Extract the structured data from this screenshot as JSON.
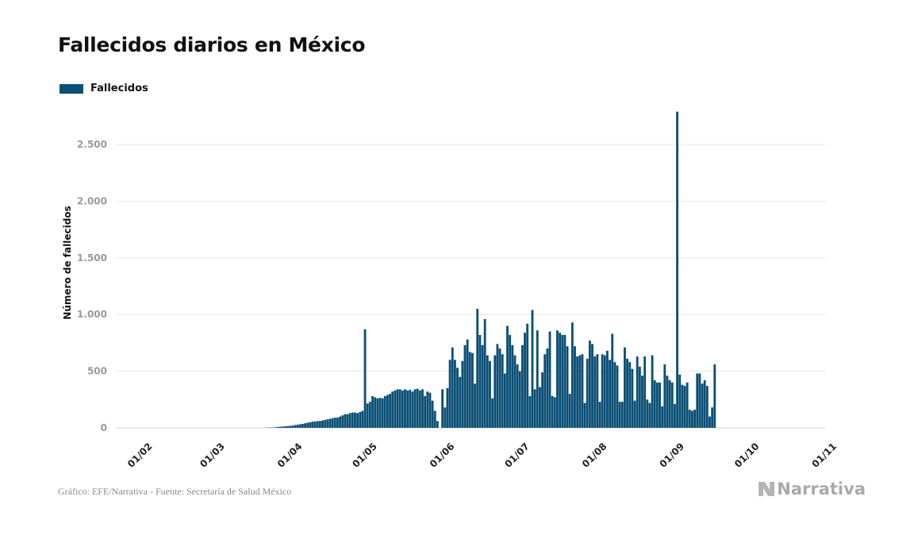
{
  "title": "Fallecidos diarios en México",
  "footer": "Gráfico: EFE/Narrativa - Fuente: Secretaría de Salud México",
  "brand": "Narrativa",
  "brand_icon": "narrativa-logo-icon",
  "colors": {
    "bar": "#0b4f75",
    "grid": "#e6e6e6",
    "tick_text": "#9a9a9a",
    "title": "#111111"
  },
  "chart_data": {
    "type": "bar",
    "title": "Fallecidos diarios en México",
    "xlabel": "",
    "ylabel": "Número de fallecidos",
    "ylim": [
      0,
      2900
    ],
    "yticks": [
      0,
      500,
      1000,
      1500,
      2000,
      2500
    ],
    "ytick_labels": [
      "0",
      "500",
      "1.000",
      "1.500",
      "2.000",
      "2.500"
    ],
    "xlim": [
      "2020-01-22",
      "2020-10-31"
    ],
    "xticks": [
      "2020-02-01",
      "2020-03-01",
      "2020-04-01",
      "2020-05-01",
      "2020-06-01",
      "2020-07-01",
      "2020-08-01",
      "2020-09-01",
      "2020-10-01",
      "2020-11-01"
    ],
    "xtick_labels": [
      "01/02",
      "01/03",
      "01/04",
      "01/05",
      "01/06",
      "01/07",
      "01/08",
      "01/09",
      "01/10",
      "01/11"
    ],
    "grid": true,
    "legend": "top-left",
    "series": [
      {
        "name": "Fallecidos",
        "start_date": "2020-01-22",
        "values": [
          0,
          0,
          0,
          0,
          0,
          0,
          0,
          0,
          0,
          0,
          0,
          0,
          0,
          0,
          0,
          0,
          0,
          0,
          0,
          0,
          0,
          0,
          0,
          0,
          0,
          0,
          0,
          0,
          0,
          0,
          0,
          0,
          0,
          0,
          0,
          0,
          0,
          0,
          0,
          0,
          0,
          0,
          0,
          0,
          0,
          0,
          0,
          0,
          0,
          0,
          0,
          0,
          0,
          0,
          0,
          0,
          0,
          0,
          0,
          1,
          2,
          2,
          3,
          5,
          8,
          10,
          12,
          14,
          15,
          18,
          20,
          25,
          28,
          32,
          35,
          40,
          45,
          50,
          55,
          55,
          60,
          60,
          65,
          70,
          75,
          80,
          85,
          90,
          90,
          100,
          110,
          120,
          120,
          130,
          135,
          135,
          130,
          140,
          150,
          870,
          215,
          230,
          280,
          270,
          260,
          265,
          260,
          280,
          290,
          300,
          320,
          330,
          340,
          340,
          330,
          340,
          330,
          335,
          320,
          340,
          345,
          330,
          340,
          280,
          320,
          310,
          240,
          150,
          60,
          0,
          340,
          180,
          350,
          600,
          710,
          600,
          530,
          450,
          590,
          730,
          780,
          670,
          660,
          390,
          1050,
          820,
          730,
          960,
          640,
          590,
          260,
          640,
          740,
          700,
          650,
          480,
          900,
          820,
          730,
          640,
          560,
          500,
          730,
          840,
          920,
          280,
          1040,
          340,
          860,
          360,
          490,
          650,
          700,
          850,
          280,
          270,
          860,
          840,
          820,
          820,
          720,
          300,
          930,
          720,
          630,
          640,
          650,
          220,
          610,
          770,
          740,
          630,
          650,
          230,
          650,
          640,
          680,
          600,
          830,
          580,
          550,
          230,
          230,
          710,
          610,
          580,
          520,
          240,
          630,
          540,
          460,
          630,
          250,
          220,
          640,
          420,
          400,
          400,
          190,
          560,
          460,
          420,
          400,
          210,
          2790,
          470,
          380,
          370,
          400,
          160,
          150,
          160,
          480,
          480,
          390,
          420,
          370,
          100,
          180,
          560
        ]
      }
    ]
  }
}
